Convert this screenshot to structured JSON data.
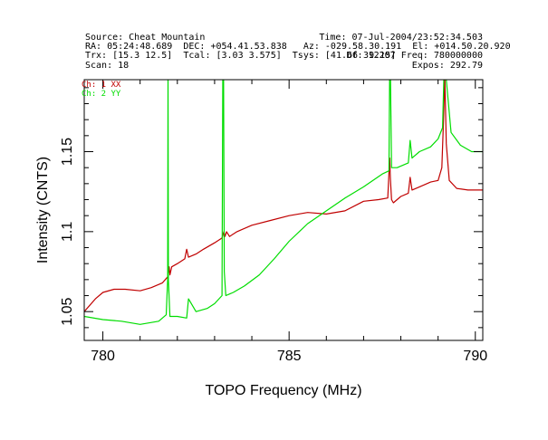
{
  "header": {
    "source": "Source: Cheat Mountain",
    "time": "Time: 07-Jul-2004/23:52:34.503",
    "coords": "RA: 05:24:48.689  DEC: +054.41.53.838   Az: -029.58.30.191  El: +014.50.20.920",
    "trx": "Trx: [15.3 12.5]  Tcal: [3.03 3.575]  Tsys: [41.66 39.15]",
    "freq_res": "Df: 12207 Freq: 780000000",
    "scan": "Scan: 18",
    "expos": "Expos: 292.79"
  },
  "colors": {
    "xx": "#c00000",
    "yy": "#00dd00",
    "axes": "#000000"
  },
  "chart_data": {
    "type": "line",
    "title": "",
    "xlabel": "TOPO Frequency (MHz)",
    "ylabel": "Intensity (CNTS)",
    "xlim": [
      779.5,
      790.2
    ],
    "ylim": [
      1.032,
      1.195
    ],
    "xticks": [
      780,
      785,
      790
    ],
    "yticks": [
      1.05,
      1.1,
      1.15
    ],
    "ytick_labels": [
      "1.05",
      "1.1",
      "1.15"
    ],
    "xtick_labels": [
      "780",
      "785",
      "790"
    ],
    "legend": [
      "Ch: 1 XX",
      "Ch: 2 YY"
    ],
    "legend_placement": "top-left",
    "series": [
      {
        "name": "Ch: 1 XX",
        "color": "#c00000",
        "x": [
          779.5,
          779.8,
          780.0,
          780.3,
          780.6,
          781.0,
          781.3,
          781.6,
          781.75,
          781.78,
          781.8,
          781.82,
          781.85,
          782.0,
          782.2,
          782.25,
          782.3,
          782.5,
          782.7,
          783.0,
          783.2,
          783.25,
          783.28,
          783.32,
          783.4,
          783.6,
          784.0,
          784.5,
          785.0,
          785.5,
          786.0,
          786.5,
          787.0,
          787.4,
          787.65,
          787.7,
          787.72,
          787.75,
          787.8,
          788.0,
          788.2,
          788.25,
          788.3,
          788.5,
          788.8,
          789.0,
          789.1,
          789.15,
          789.18,
          789.22,
          789.3,
          789.5,
          789.8,
          790.2
        ],
        "y": [
          1.05,
          1.058,
          1.062,
          1.064,
          1.064,
          1.063,
          1.065,
          1.068,
          1.072,
          1.078,
          1.073,
          1.075,
          1.078,
          1.08,
          1.083,
          1.089,
          1.084,
          1.086,
          1.089,
          1.093,
          1.096,
          1.1,
          1.097,
          1.1,
          1.097,
          1.1,
          1.104,
          1.107,
          1.11,
          1.112,
          1.111,
          1.113,
          1.119,
          1.12,
          1.121,
          1.146,
          1.133,
          1.12,
          1.118,
          1.122,
          1.124,
          1.134,
          1.126,
          1.128,
          1.131,
          1.132,
          1.14,
          1.172,
          1.197,
          1.155,
          1.132,
          1.127,
          1.126,
          1.126
        ]
      },
      {
        "name": "Ch: 2 YY",
        "color": "#00dd00",
        "x": [
          779.5,
          780.0,
          780.5,
          781.0,
          781.5,
          781.7,
          781.74,
          781.75,
          781.76,
          781.8,
          782.0,
          782.25,
          782.3,
          782.5,
          782.8,
          783.0,
          783.2,
          783.22,
          783.24,
          783.26,
          783.3,
          783.5,
          783.8,
          784.2,
          784.6,
          785.0,
          785.5,
          786.0,
          786.5,
          787.0,
          787.5,
          787.68,
          787.7,
          787.72,
          787.75,
          787.9,
          788.2,
          788.25,
          788.3,
          788.5,
          788.8,
          789.0,
          789.12,
          789.16,
          789.2,
          789.35,
          789.6,
          789.9,
          790.2
        ],
        "y": [
          1.047,
          1.045,
          1.044,
          1.042,
          1.044,
          1.048,
          1.07,
          1.2,
          1.07,
          1.047,
          1.047,
          1.046,
          1.058,
          1.05,
          1.052,
          1.055,
          1.06,
          1.2,
          1.2,
          1.075,
          1.06,
          1.062,
          1.066,
          1.073,
          1.083,
          1.094,
          1.105,
          1.113,
          1.121,
          1.128,
          1.136,
          1.138,
          1.2,
          1.2,
          1.14,
          1.14,
          1.143,
          1.157,
          1.146,
          1.15,
          1.153,
          1.158,
          1.165,
          1.2,
          1.2,
          1.162,
          1.154,
          1.15,
          1.15
        ]
      }
    ]
  }
}
